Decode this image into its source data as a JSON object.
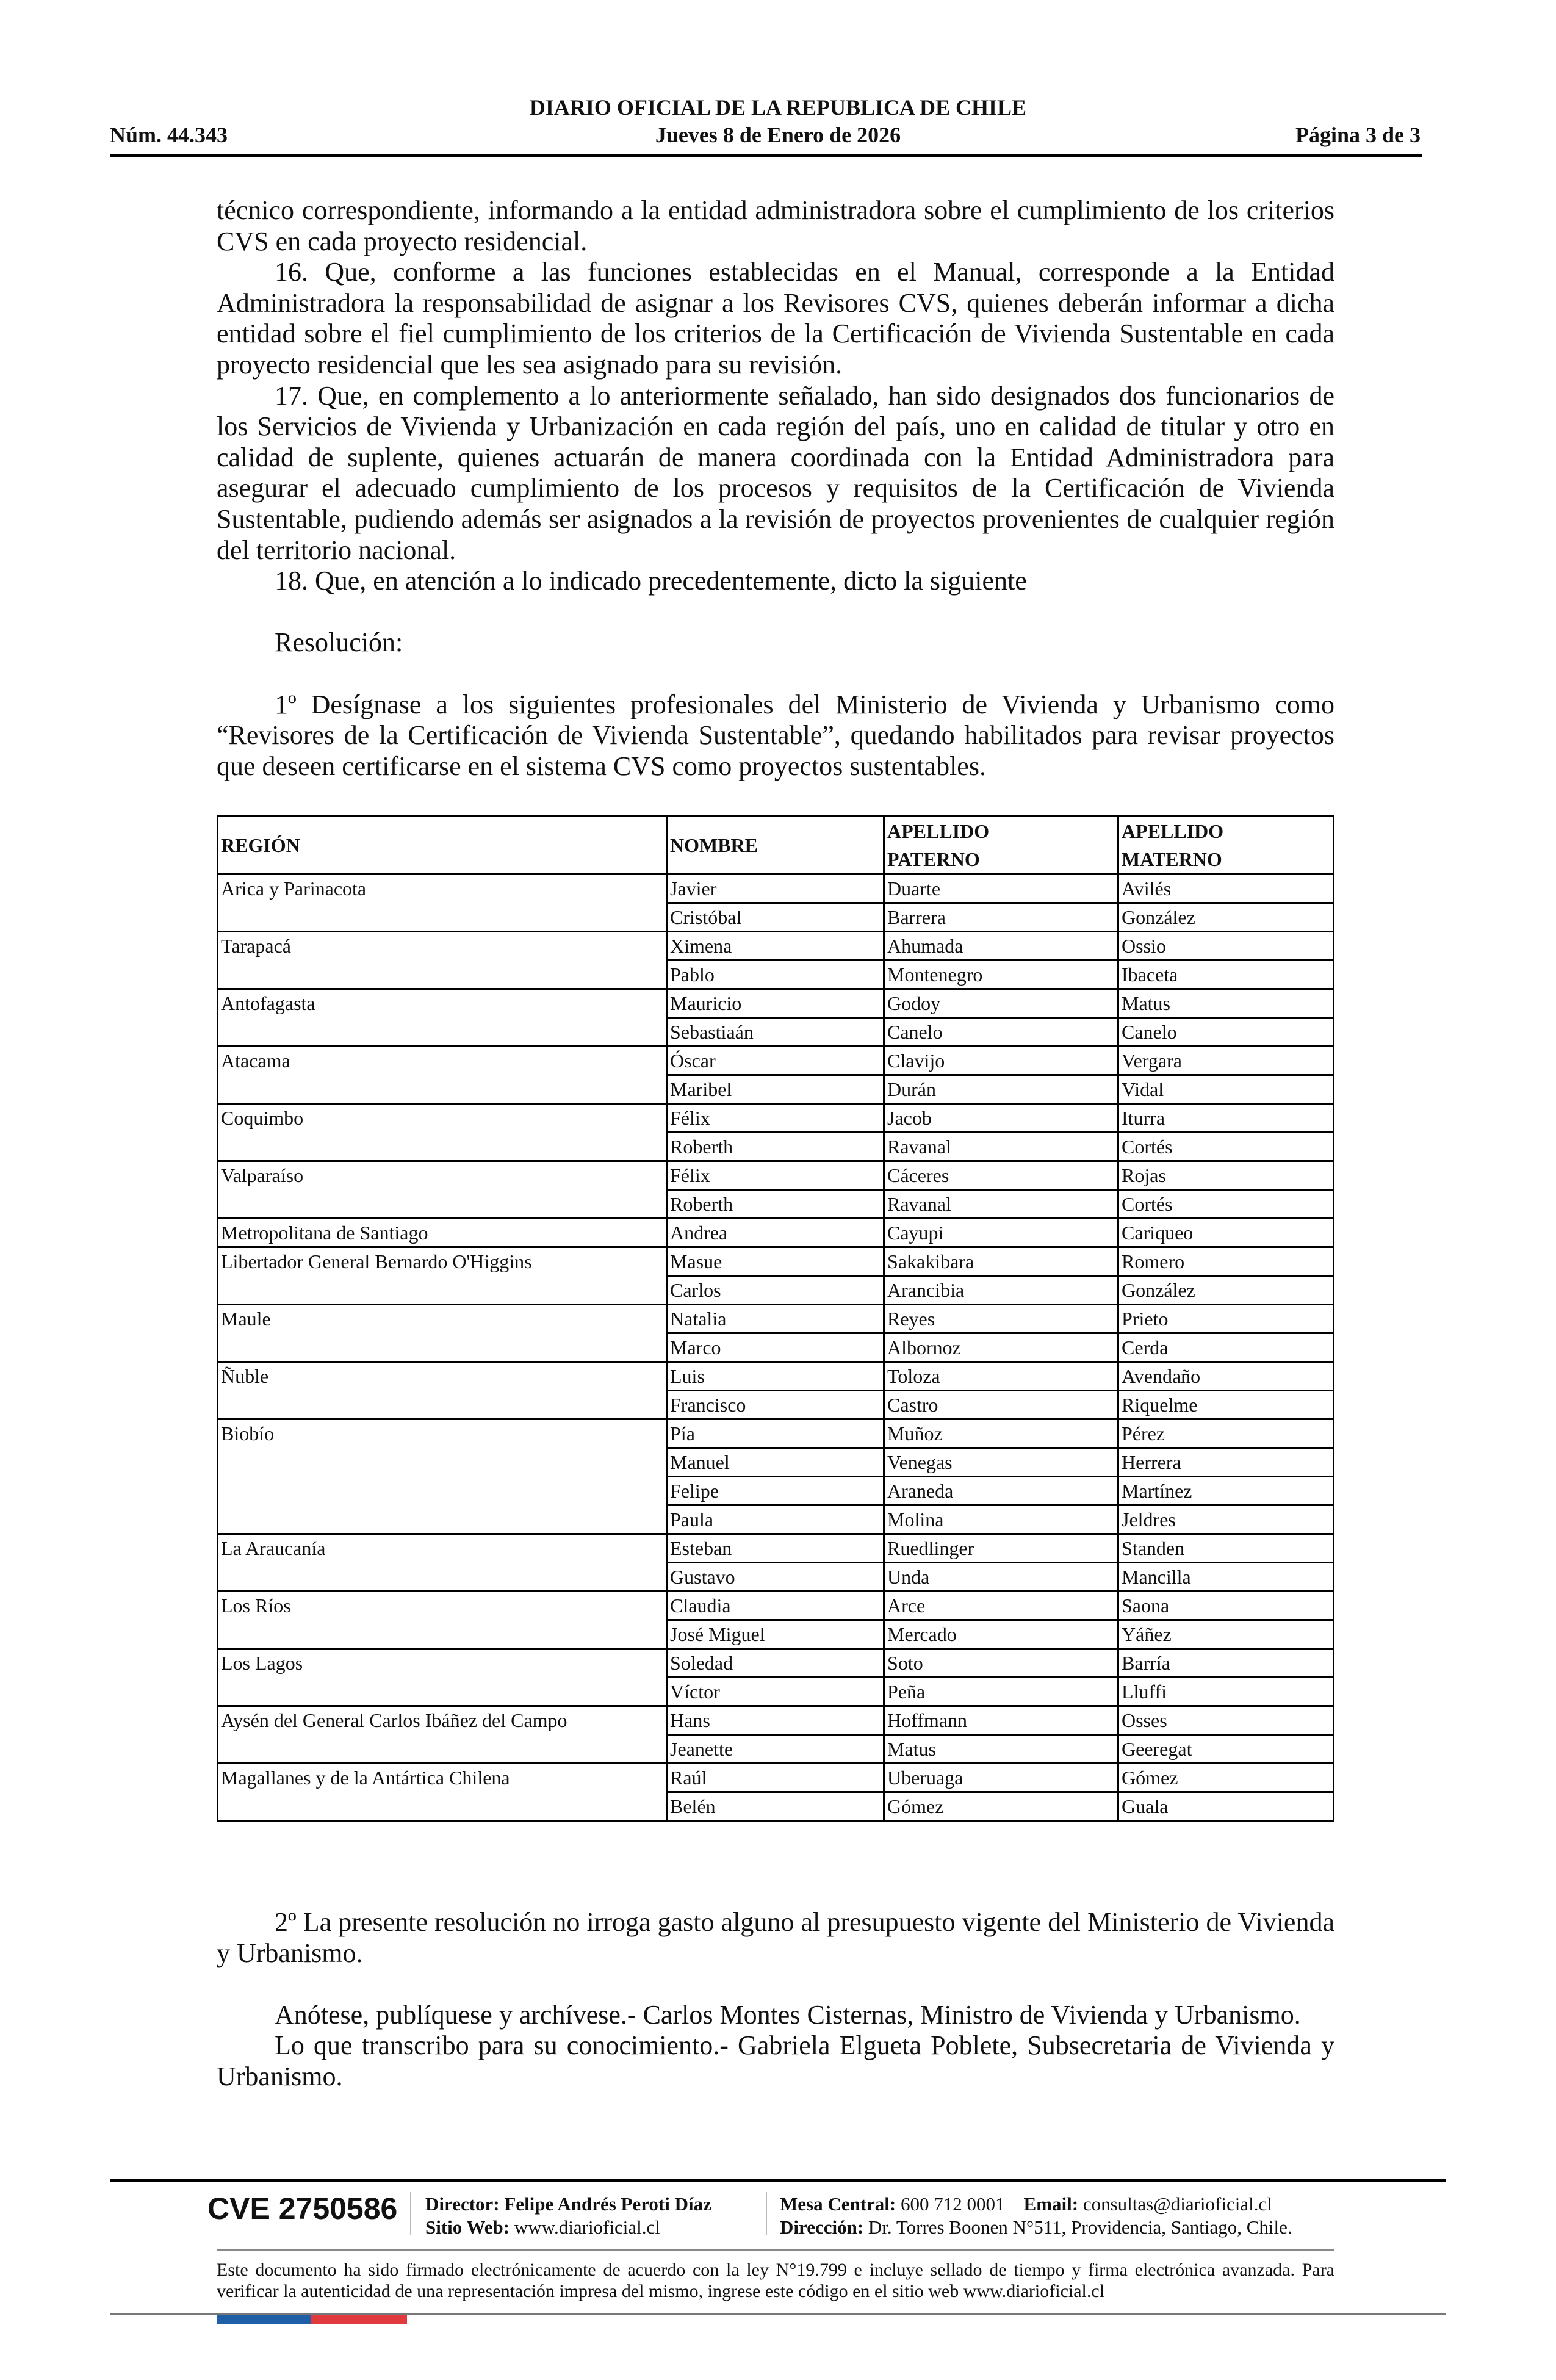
{
  "header": {
    "title": "DIARIO OFICIAL DE LA REPUBLICA DE CHILE",
    "number": "Núm. 44.343",
    "date": "Jueves 8 de Enero de 2026",
    "page": "Página 3 de 3"
  },
  "body": {
    "p0": "técnico correspondiente, informando a la entidad administradora sobre el cumplimiento de los criterios CVS en cada proyecto residencial.",
    "p16": "16. Que, conforme a las funciones establecidas en el Manual, corresponde a la Entidad Administradora la responsabilidad de asignar a los Revisores CVS, quienes deberán informar a dicha entidad sobre el fiel cumplimiento de los criterios de la Certificación de Vivienda Sustentable en cada proyecto residencial que les sea asignado para su revisión.",
    "p17": "17. Que, en complemento a lo anteriormente señalado, han sido designados dos funcionarios de los Servicios de Vivienda y Urbanización en cada región del país, uno en calidad de titular y otro en calidad de suplente, quienes actuarán de manera coordinada con la Entidad Administradora para asegurar el adecuado cumplimiento de los procesos y requisitos de la Certificación de Vivienda Sustentable, pudiendo además ser asignados a la revisión de proyectos provenientes de cualquier región del territorio nacional.",
    "p18": "18. Que, en atención a lo indicado precedentemente, dicto la siguiente",
    "resolucion": "Resolución:",
    "r1": "1º Desígnase a los siguientes profesionales del Ministerio de Vivienda y Urbanismo como “Revisores de la Certificación de Vivienda Sustentable”, quedando habilitados para revisar proyectos que deseen certificarse en el sistema CVS como proyectos sustentables.",
    "r2": "2º La presente resolución no irroga gasto alguno al presupuesto vigente del Ministerio de Vivienda y Urbanismo.",
    "anotese": "Anótese, publíquese y archívese.- Carlos Montes Cisternas, Ministro de Vivienda y Urbanismo.",
    "transcribo": "Lo que transcribo para su conocimiento.- Gabriela Elgueta Poblete, Subsecretaria de Vivienda y Urbanismo."
  },
  "table": {
    "headers": {
      "region": "REGIÓN",
      "nombre": "NOMBRE",
      "paterno_1": "APELLIDO",
      "paterno_2": "PATERNO",
      "materno_1": "APELLIDO",
      "materno_2": "MATERNO"
    },
    "regions": [
      {
        "region": "Arica y Parinacota",
        "people": [
          [
            "Javier",
            "Duarte",
            "Avilés"
          ],
          [
            "Cristóbal",
            "Barrera",
            "González"
          ]
        ]
      },
      {
        "region": "Tarapacá",
        "people": [
          [
            "Ximena",
            "Ahumada",
            "Ossio"
          ],
          [
            "Pablo",
            "Montenegro",
            "Ibaceta"
          ]
        ]
      },
      {
        "region": "Antofagasta",
        "people": [
          [
            "Mauricio",
            "Godoy",
            "Matus"
          ],
          [
            "Sebastiaán",
            "Canelo",
            "Canelo"
          ]
        ]
      },
      {
        "region": "Atacama",
        "people": [
          [
            "Óscar",
            "Clavijo",
            "Vergara"
          ],
          [
            "Maribel",
            "Durán",
            "Vidal"
          ]
        ]
      },
      {
        "region": "Coquimbo",
        "people": [
          [
            "Félix",
            "Jacob",
            "Iturra"
          ],
          [
            "Roberth",
            "Ravanal",
            "Cortés"
          ]
        ]
      },
      {
        "region": "Valparaíso",
        "people": [
          [
            "Félix",
            "Cáceres",
            "Rojas"
          ],
          [
            "Roberth",
            "Ravanal",
            "Cortés"
          ]
        ]
      },
      {
        "region": "Metropolitana de Santiago",
        "people": [
          [
            "Andrea",
            "Cayupi",
            "Cariqueo"
          ]
        ]
      },
      {
        "region": "Libertador General Bernardo O'Higgins",
        "people": [
          [
            "Masue",
            "Sakakibara",
            "Romero"
          ],
          [
            "Carlos",
            "Arancibia",
            "González"
          ]
        ]
      },
      {
        "region": "Maule",
        "people": [
          [
            "Natalia",
            "Reyes",
            "Prieto"
          ],
          [
            "Marco",
            "Albornoz",
            "Cerda"
          ]
        ]
      },
      {
        "region": "Ñuble",
        "people": [
          [
            "Luis",
            "Toloza",
            "Avendaño"
          ],
          [
            "Francisco",
            "Castro",
            "Riquelme"
          ]
        ]
      },
      {
        "region": "Biobío",
        "people": [
          [
            "Pía",
            "Muñoz",
            "Pérez"
          ],
          [
            "Manuel",
            "Venegas",
            "Herrera"
          ],
          [
            "Felipe",
            "Araneda",
            "Martínez"
          ],
          [
            "Paula",
            "Molina",
            "Jeldres"
          ]
        ]
      },
      {
        "region": "La Araucanía",
        "people": [
          [
            "Esteban",
            "Ruedlinger",
            "Standen"
          ],
          [
            "Gustavo",
            "Unda",
            "Mancilla"
          ]
        ]
      },
      {
        "region": "Los Ríos",
        "people": [
          [
            "Claudia",
            "Arce",
            "Saona"
          ],
          [
            "José Miguel",
            "Mercado",
            "Yáñez"
          ]
        ]
      },
      {
        "region": "Los Lagos",
        "people": [
          [
            "Soledad",
            "Soto",
            "Barría"
          ],
          [
            "Víctor",
            "Peña",
            "Lluffi"
          ]
        ]
      },
      {
        "region": "Aysén del General Carlos Ibáñez del Campo",
        "people": [
          [
            "Hans",
            "Hoffmann",
            "Osses"
          ],
          [
            "Jeanette",
            "Matus",
            "Geeregat"
          ]
        ]
      },
      {
        "region": "Magallanes y de la Antártica Chilena",
        "people": [
          [
            "Raúl",
            "Uberuaga",
            "Gómez"
          ],
          [
            "Belén",
            "Gómez",
            "Guala"
          ]
        ]
      }
    ]
  },
  "footer": {
    "cve": "CVE 2750586",
    "director_label": "Director:",
    "director": "Felipe Andrés Peroti Díaz",
    "web_label": "Sitio Web:",
    "web": "www.diarioficial.cl",
    "mesa_label": "Mesa Central:",
    "mesa": "600 712 0001",
    "email_label": "Email:",
    "email": "consultas@diarioficial.cl",
    "direccion_label": "Dirección:",
    "direccion": "Dr. Torres Boonen N°511, Providencia, Santiago, Chile.",
    "notice": "Este documento ha sido firmado electrónicamente de acuerdo con la ley N°19.799 e incluye sellado de tiempo y firma electrónica avanzada. Para verificar la autenticidad de una representación impresa del mismo, ingrese este código en el sitio web www.diarioficial.cl",
    "flag_colors": {
      "blue": "#1f5fa8",
      "red": "#e0393e"
    }
  }
}
